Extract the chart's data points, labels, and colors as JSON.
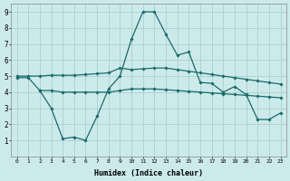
{
  "xlabel": "Humidex (Indice chaleur)",
  "xlim": [
    -0.5,
    23.5
  ],
  "ylim": [
    0,
    9.5
  ],
  "xticks": [
    0,
    1,
    2,
    3,
    4,
    5,
    6,
    7,
    8,
    9,
    10,
    11,
    12,
    13,
    14,
    15,
    16,
    17,
    18,
    19,
    20,
    21,
    22,
    23
  ],
  "yticks": [
    1,
    2,
    3,
    4,
    5,
    6,
    7,
    8,
    9
  ],
  "background_color": "#cdeaea",
  "grid_color": "#aacfcf",
  "line_color": "#1a6b6b",
  "series": [
    {
      "x": [
        0,
        1,
        2,
        3,
        4,
        5,
        6,
        7,
        8,
        9,
        10,
        11,
        12,
        13,
        14,
        15,
        16,
        17,
        18,
        19,
        20,
        21,
        22,
        23
      ],
      "y": [
        5.0,
        5.0,
        5.0,
        5.05,
        5.05,
        5.05,
        5.1,
        5.15,
        5.2,
        5.5,
        5.4,
        5.45,
        5.5,
        5.5,
        5.4,
        5.3,
        5.2,
        5.1,
        5.0,
        4.9,
        4.8,
        4.7,
        4.6,
        4.5
      ]
    },
    {
      "x": [
        0,
        1,
        2,
        3,
        4,
        5,
        6,
        7,
        8,
        9,
        10,
        11,
        12,
        13,
        14,
        15,
        16,
        17,
        18,
        19,
        20,
        21,
        22,
        23
      ],
      "y": [
        4.9,
        4.9,
        4.1,
        4.1,
        4.0,
        4.0,
        4.0,
        4.0,
        4.0,
        4.1,
        4.2,
        4.2,
        4.2,
        4.15,
        4.1,
        4.05,
        4.0,
        3.95,
        3.9,
        3.85,
        3.8,
        3.75,
        3.7,
        3.65
      ]
    },
    {
      "x": [
        2,
        3,
        4,
        5,
        6,
        7,
        8,
        9,
        10,
        11,
        12,
        13,
        14,
        15,
        16,
        17,
        18,
        19,
        20,
        21,
        22,
        23
      ],
      "y": [
        4.1,
        3.0,
        1.1,
        1.2,
        1.0,
        2.5,
        4.2,
        5.0,
        7.3,
        9.0,
        9.0,
        7.6,
        6.3,
        6.5,
        4.6,
        4.55,
        4.0,
        4.35,
        3.85,
        2.3,
        2.3,
        2.7
      ]
    }
  ]
}
